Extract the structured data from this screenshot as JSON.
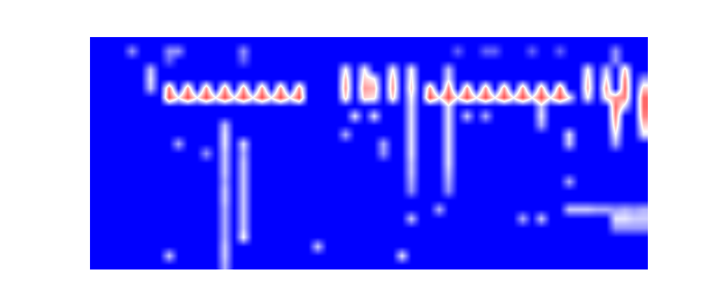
{
  "chart_data": {
    "type": "heatmap",
    "tick_labels": false,
    "grid": false,
    "zlim": [
      0,
      1
    ],
    "cells": [
      [
        0,
        0,
        0,
        0,
        0,
        0,
        0,
        0,
        0,
        0,
        0,
        0,
        0,
        0,
        0,
        0,
        0,
        0,
        0,
        0,
        0,
        0,
        0,
        0,
        0,
        0,
        0,
        0,
        0,
        0,
        0,
        0,
        0,
        0,
        0,
        0,
        0,
        0,
        0,
        0,
        0,
        0,
        0,
        0,
        0,
        0,
        0,
        0,
        0,
        0,
        0,
        0,
        0,
        0,
        0,
        0,
        0,
        0,
        0,
        0
      ],
      [
        0,
        0,
        0,
        0,
        0.3,
        0,
        0,
        0,
        0.3,
        0.3,
        0,
        0,
        0,
        0,
        0,
        0,
        0.3,
        0,
        0,
        0,
        0,
        0,
        0,
        0,
        0,
        0,
        0,
        0,
        0,
        0,
        0,
        0,
        0,
        0,
        0,
        0,
        0,
        0,
        0,
        0.2,
        0,
        0,
        0.2,
        0.2,
        0,
        0,
        0,
        0.2,
        0,
        0,
        0.2,
        0,
        0,
        0,
        0,
        0,
        0.3,
        0,
        0,
        0
      ],
      [
        0,
        0,
        0,
        0,
        0,
        0,
        0,
        0,
        0.2,
        0,
        0,
        0,
        0,
        0,
        0,
        0,
        0.2,
        0,
        0,
        0,
        0,
        0,
        0,
        0,
        0,
        0,
        0,
        0,
        0,
        0,
        0,
        0,
        0,
        0,
        0,
        0,
        0,
        0,
        0,
        0,
        0,
        0,
        0,
        0,
        0,
        0,
        0,
        0,
        0,
        0,
        0,
        0,
        0,
        0,
        0,
        0,
        0.3,
        0,
        0,
        0
      ],
      [
        0,
        0,
        0,
        0,
        0,
        0,
        0.4,
        0,
        0,
        0,
        0,
        0,
        0,
        0,
        0,
        0,
        0,
        0,
        0,
        0,
        0,
        0,
        0,
        0,
        0,
        0,
        0,
        0.5,
        0,
        0.5,
        0,
        0,
        0.5,
        0,
        0.5,
        0,
        0,
        0,
        0.4,
        0,
        0,
        0,
        0,
        0,
        0,
        0,
        0,
        0,
        0,
        0,
        0,
        0,
        0,
        0.5,
        0,
        0.4,
        0,
        0.6,
        0,
        0
      ],
      [
        0,
        0,
        0,
        0,
        0,
        0,
        0.45,
        0,
        0,
        0,
        0,
        0,
        0,
        0,
        0,
        0,
        0,
        0,
        0,
        0,
        0,
        0,
        0,
        0,
        0,
        0,
        0,
        0.65,
        0,
        0.6,
        0.5,
        0,
        0.65,
        0,
        0.55,
        0,
        0,
        0,
        0.45,
        0,
        0,
        0,
        0,
        0,
        0,
        0,
        0,
        0,
        0,
        0,
        0,
        0,
        0,
        0.6,
        0,
        0.55,
        0,
        0.75,
        0,
        0.3
      ],
      [
        0,
        0,
        0,
        0,
        0,
        0,
        0.4,
        0,
        0.75,
        0,
        0.7,
        0,
        0.7,
        0,
        0.7,
        0,
        0.7,
        0,
        0.7,
        0,
        0.7,
        0,
        0.7,
        0,
        0,
        0,
        0,
        0.7,
        0,
        0.7,
        0.65,
        0,
        0.7,
        0,
        0.6,
        0,
        0.7,
        0,
        0.75,
        0,
        0.7,
        0,
        0.7,
        0,
        0.7,
        0,
        0.7,
        0,
        0.7,
        0,
        0.75,
        0,
        0,
        0.65,
        0,
        0.7,
        0,
        0.8,
        0,
        0.6
      ],
      [
        0,
        0,
        0,
        0,
        0,
        0,
        0,
        0,
        0.85,
        0.5,
        0.85,
        0.5,
        0.85,
        0.5,
        0.85,
        0.5,
        0.85,
        0.5,
        0.85,
        0.5,
        0.85,
        0.5,
        0.85,
        0,
        0,
        0,
        0,
        0.6,
        0,
        0.6,
        0.55,
        0,
        0.6,
        0,
        0.5,
        0,
        0.85,
        0.5,
        0.85,
        0.5,
        0.85,
        0.5,
        0.85,
        0.5,
        0.85,
        0.5,
        0.85,
        0.5,
        0.85,
        0.5,
        0.85,
        0.5,
        0,
        0.5,
        0,
        0.55,
        0.7,
        0.75,
        0,
        0.8
      ],
      [
        0,
        0,
        0,
        0,
        0,
        0,
        0,
        0,
        0,
        0,
        0,
        0,
        0,
        0,
        0,
        0,
        0,
        0,
        0,
        0,
        0,
        0,
        0,
        0,
        0,
        0,
        0,
        0,
        0,
        0,
        0,
        0,
        0,
        0,
        0.45,
        0,
        0,
        0,
        0.45,
        0,
        0,
        0,
        0,
        0,
        0,
        0,
        0,
        0,
        0.4,
        0,
        0,
        0,
        0,
        0,
        0,
        0,
        0.8,
        0.4,
        0,
        0.8
      ],
      [
        0,
        0,
        0,
        0,
        0,
        0,
        0,
        0,
        0,
        0,
        0,
        0,
        0,
        0,
        0,
        0,
        0,
        0,
        0,
        0,
        0,
        0,
        0,
        0,
        0,
        0,
        0,
        0,
        0.45,
        0,
        0.45,
        0,
        0,
        0,
        0.45,
        0,
        0,
        0,
        0.45,
        0,
        0.4,
        0,
        0.35,
        0,
        0,
        0,
        0,
        0,
        0.45,
        0,
        0,
        0,
        0,
        0,
        0,
        0,
        0.75,
        0,
        0,
        0.75
      ],
      [
        0,
        0,
        0,
        0,
        0,
        0,
        0,
        0,
        0,
        0,
        0,
        0,
        0,
        0,
        0.4,
        0,
        0,
        0,
        0,
        0,
        0,
        0,
        0,
        0,
        0,
        0,
        0,
        0,
        0,
        0,
        0,
        0,
        0,
        0,
        0.45,
        0,
        0,
        0,
        0.45,
        0,
        0,
        0,
        0,
        0,
        0,
        0,
        0,
        0,
        0.35,
        0,
        0,
        0,
        0,
        0,
        0,
        0,
        0.65,
        0,
        0,
        0.6
      ],
      [
        0,
        0,
        0,
        0,
        0,
        0,
        0,
        0,
        0,
        0,
        0,
        0,
        0,
        0,
        0.45,
        0,
        0,
        0,
        0,
        0,
        0,
        0,
        0,
        0,
        0,
        0,
        0,
        0.35,
        0,
        0,
        0,
        0,
        0,
        0,
        0.45,
        0,
        0,
        0,
        0.45,
        0,
        0,
        0,
        0,
        0,
        0,
        0,
        0,
        0,
        0,
        0,
        0,
        0.45,
        0,
        0,
        0,
        0,
        0.5,
        0,
        0,
        0.45
      ],
      [
        0,
        0,
        0,
        0,
        0,
        0,
        0,
        0,
        0,
        0.35,
        0,
        0,
        0,
        0,
        0.45,
        0,
        0.45,
        0,
        0,
        0,
        0,
        0,
        0,
        0,
        0,
        0,
        0,
        0,
        0,
        0,
        0,
        0.35,
        0,
        0,
        0.45,
        0,
        0,
        0,
        0.45,
        0,
        0,
        0,
        0,
        0,
        0,
        0,
        0,
        0,
        0,
        0,
        0,
        0.4,
        0,
        0,
        0,
        0,
        0.35,
        0,
        0,
        0
      ],
      [
        0,
        0,
        0,
        0,
        0,
        0,
        0,
        0,
        0,
        0,
        0,
        0,
        0.3,
        0,
        0.4,
        0,
        0.35,
        0,
        0,
        0,
        0,
        0,
        0,
        0,
        0,
        0,
        0,
        0,
        0,
        0,
        0,
        0.3,
        0,
        0,
        0.45,
        0,
        0,
        0,
        0.45,
        0,
        0,
        0,
        0,
        0,
        0,
        0,
        0,
        0,
        0,
        0,
        0,
        0,
        0,
        0,
        0,
        0,
        0,
        0,
        0,
        0
      ],
      [
        0,
        0,
        0,
        0,
        0,
        0,
        0,
        0,
        0,
        0,
        0,
        0,
        0,
        0,
        0.4,
        0,
        0.4,
        0,
        0,
        0,
        0,
        0,
        0,
        0,
        0,
        0,
        0,
        0,
        0,
        0,
        0,
        0,
        0,
        0,
        0.4,
        0,
        0,
        0,
        0.45,
        0,
        0,
        0,
        0,
        0,
        0,
        0,
        0,
        0,
        0,
        0,
        0,
        0,
        0,
        0,
        0,
        0,
        0,
        0,
        0,
        0
      ],
      [
        0,
        0,
        0,
        0,
        0,
        0,
        0,
        0,
        0,
        0,
        0,
        0,
        0,
        0,
        0.4,
        0,
        0.4,
        0,
        0,
        0,
        0,
        0,
        0,
        0,
        0,
        0,
        0,
        0,
        0,
        0,
        0,
        0,
        0,
        0,
        0.4,
        0,
        0,
        0,
        0.4,
        0,
        0,
        0,
        0,
        0,
        0,
        0,
        0,
        0,
        0,
        0,
        0,
        0,
        0,
        0,
        0,
        0,
        0,
        0,
        0,
        0
      ],
      [
        0,
        0,
        0,
        0,
        0,
        0,
        0,
        0,
        0,
        0,
        0,
        0,
        0,
        0,
        0.35,
        0,
        0.4,
        0,
        0,
        0,
        0,
        0,
        0,
        0,
        0,
        0,
        0,
        0,
        0,
        0,
        0,
        0,
        0,
        0,
        0.35,
        0,
        0,
        0,
        0.35,
        0,
        0,
        0,
        0,
        0,
        0,
        0,
        0,
        0,
        0,
        0,
        0,
        0.35,
        0,
        0,
        0,
        0,
        0,
        0,
        0,
        0
      ],
      [
        0,
        0,
        0,
        0,
        0,
        0,
        0,
        0,
        0,
        0,
        0,
        0,
        0,
        0,
        0.4,
        0,
        0.4,
        0,
        0,
        0,
        0,
        0,
        0,
        0,
        0,
        0,
        0,
        0,
        0,
        0,
        0,
        0,
        0,
        0,
        0.3,
        0,
        0,
        0,
        0.3,
        0,
        0,
        0,
        0,
        0,
        0,
        0,
        0,
        0,
        0,
        0,
        0,
        0,
        0,
        0,
        0,
        0,
        0,
        0,
        0,
        0
      ],
      [
        0,
        0,
        0,
        0,
        0,
        0,
        0,
        0,
        0,
        0,
        0,
        0,
        0,
        0,
        0.4,
        0,
        0.4,
        0,
        0,
        0,
        0,
        0,
        0,
        0,
        0,
        0,
        0,
        0,
        0,
        0,
        0,
        0,
        0,
        0,
        0,
        0,
        0,
        0,
        0,
        0,
        0,
        0,
        0,
        0,
        0,
        0,
        0,
        0,
        0,
        0,
        0,
        0,
        0,
        0,
        0,
        0,
        0,
        0,
        0,
        0
      ],
      [
        0,
        0,
        0,
        0,
        0,
        0,
        0,
        0,
        0,
        0,
        0,
        0,
        0,
        0,
        0.35,
        0,
        0.4,
        0,
        0,
        0,
        0,
        0,
        0,
        0,
        0,
        0,
        0,
        0,
        0,
        0,
        0,
        0,
        0,
        0,
        0,
        0,
        0,
        0.35,
        0,
        0,
        0,
        0,
        0,
        0,
        0,
        0,
        0,
        0,
        0,
        0,
        0,
        0.4,
        0.4,
        0.4,
        0.35,
        0.35,
        0.3,
        0.35,
        0.3,
        0.35
      ],
      [
        0,
        0,
        0,
        0,
        0,
        0,
        0,
        0,
        0,
        0,
        0,
        0,
        0,
        0,
        0.35,
        0,
        0.4,
        0,
        0,
        0,
        0,
        0,
        0,
        0,
        0,
        0,
        0,
        0,
        0,
        0,
        0,
        0,
        0,
        0,
        0.4,
        0,
        0,
        0,
        0,
        0,
        0,
        0,
        0,
        0,
        0,
        0,
        0.35,
        0,
        0.4,
        0,
        0,
        0,
        0,
        0,
        0,
        0,
        0.45,
        0.45,
        0.4,
        0.4
      ],
      [
        0,
        0,
        0,
        0,
        0,
        0,
        0,
        0,
        0,
        0,
        0,
        0,
        0,
        0,
        0.35,
        0,
        0.4,
        0,
        0,
        0,
        0,
        0,
        0,
        0,
        0,
        0,
        0,
        0,
        0,
        0,
        0,
        0,
        0,
        0,
        0,
        0,
        0,
        0,
        0,
        0,
        0,
        0,
        0,
        0,
        0,
        0,
        0,
        0,
        0,
        0,
        0,
        0,
        0,
        0,
        0,
        0,
        0.3,
        0.3,
        0.3,
        0.3
      ],
      [
        0,
        0,
        0,
        0,
        0,
        0,
        0,
        0,
        0,
        0,
        0,
        0,
        0,
        0,
        0.35,
        0,
        0.5,
        0,
        0,
        0,
        0,
        0,
        0,
        0,
        0,
        0,
        0,
        0,
        0,
        0,
        0,
        0,
        0,
        0,
        0,
        0,
        0,
        0,
        0,
        0,
        0,
        0,
        0,
        0,
        0,
        0,
        0,
        0,
        0,
        0,
        0,
        0,
        0,
        0,
        0,
        0,
        0,
        0,
        0,
        0
      ],
      [
        0,
        0,
        0,
        0,
        0,
        0,
        0,
        0,
        0,
        0,
        0,
        0,
        0,
        0,
        0.4,
        0,
        0,
        0,
        0,
        0,
        0,
        0,
        0,
        0,
        0.4,
        0,
        0,
        0,
        0,
        0,
        0,
        0,
        0,
        0,
        0,
        0,
        0,
        0,
        0,
        0,
        0,
        0,
        0,
        0,
        0,
        0,
        0,
        0,
        0,
        0,
        0,
        0,
        0,
        0,
        0,
        0,
        0,
        0,
        0,
        0
      ],
      [
        0,
        0,
        0,
        0,
        0,
        0,
        0,
        0,
        0.4,
        0,
        0,
        0,
        0,
        0,
        0.4,
        0,
        0,
        0,
        0,
        0,
        0,
        0,
        0,
        0,
        0,
        0,
        0,
        0,
        0,
        0,
        0,
        0,
        0,
        0.45,
        0,
        0,
        0,
        0,
        0,
        0,
        0,
        0,
        0,
        0,
        0,
        0,
        0,
        0,
        0,
        0,
        0,
        0,
        0,
        0,
        0,
        0,
        0,
        0,
        0,
        0
      ],
      [
        0,
        0,
        0,
        0,
        0,
        0,
        0,
        0,
        0,
        0,
        0,
        0,
        0,
        0,
        0.35,
        0,
        0,
        0,
        0,
        0,
        0,
        0,
        0,
        0,
        0,
        0,
        0,
        0,
        0,
        0,
        0,
        0,
        0,
        0,
        0,
        0,
        0,
        0,
        0,
        0,
        0,
        0,
        0,
        0,
        0,
        0,
        0,
        0,
        0,
        0,
        0,
        0,
        0,
        0,
        0,
        0,
        0,
        0,
        0,
        0
      ]
    ]
  }
}
